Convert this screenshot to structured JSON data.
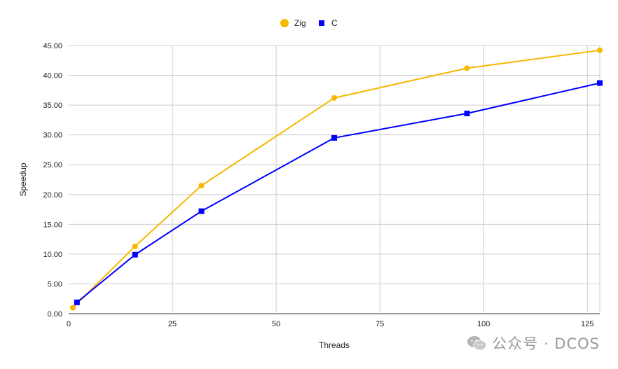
{
  "chart_data": {
    "type": "line",
    "title": "",
    "xlabel": "Threads",
    "ylabel": "Speedup",
    "xlim": [
      0,
      128
    ],
    "ylim": [
      0,
      45
    ],
    "xticks": [
      0,
      25,
      50,
      75,
      100,
      125
    ],
    "xtick_labels": [
      "0",
      "25",
      "50",
      "75",
      "100",
      "125"
    ],
    "yticks": [
      0,
      5,
      10,
      15,
      20,
      25,
      30,
      35,
      40,
      45
    ],
    "ytick_labels": [
      "0.00",
      "5.00",
      "10.00",
      "15.00",
      "20.00",
      "25.00",
      "30.00",
      "35.00",
      "40.00",
      "45.00"
    ],
    "grid": true,
    "legend_position": "top-center",
    "series": [
      {
        "name": "Zig",
        "color": "#F5B800",
        "marker": "circle",
        "x": [
          1,
          16,
          32,
          64,
          96,
          128
        ],
        "y": [
          1.0,
          11.3,
          21.5,
          36.2,
          41.2,
          44.2
        ]
      },
      {
        "name": "C",
        "color": "#0000FF",
        "marker": "square",
        "x": [
          2,
          16,
          32,
          64,
          96,
          128
        ],
        "y": [
          1.9,
          9.9,
          17.2,
          29.5,
          33.6,
          38.7
        ]
      }
    ]
  },
  "watermark": {
    "text": "公众号 · DCOS",
    "icon": "wechat-icon"
  }
}
